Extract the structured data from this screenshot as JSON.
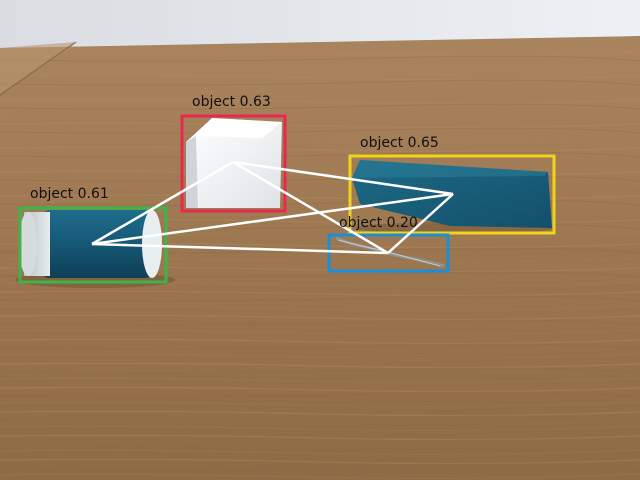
{
  "detections": [
    {
      "label": "object",
      "score": "0.63",
      "color": "#e8294f",
      "object": "white foam block"
    },
    {
      "label": "object",
      "score": "0.65",
      "color": "#f2d31b",
      "object": "blue flat board"
    },
    {
      "label": "object",
      "score": "0.61",
      "color": "#3db54a",
      "object": "blue cylinder"
    },
    {
      "label": "object",
      "score": "0.20",
      "color": "#1a8fd6",
      "object": "small metal wire"
    }
  ],
  "graph_color": "#ffffff",
  "graph_edges": [
    [
      0,
      1
    ],
    [
      0,
      2
    ],
    [
      0,
      3
    ],
    [
      1,
      2
    ],
    [
      1,
      3
    ],
    [
      2,
      3
    ]
  ]
}
